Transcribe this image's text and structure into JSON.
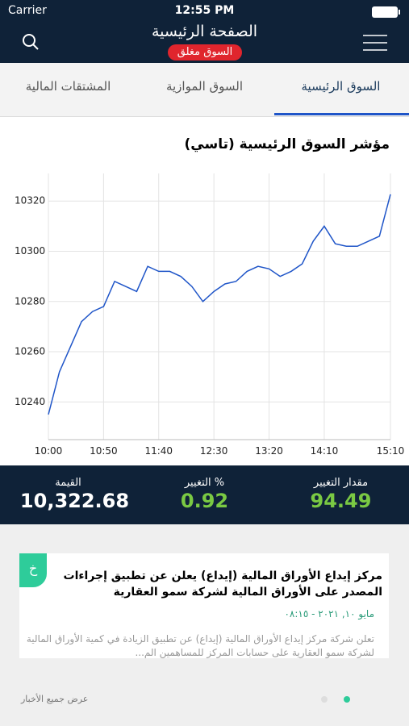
{
  "status_bar": {
    "carrier": "Carrier",
    "time": "12:55 PM"
  },
  "header": {
    "title": "الصفحة الرئيسية",
    "badge": "السوق مغلق"
  },
  "tabs": [
    "السوق الرئيسية",
    "السوق الموازية",
    "المشتقات المالية"
  ],
  "chart_data": {
    "type": "line",
    "title": "مؤشر السوق الرئيسية (تاسي)",
    "x": [
      "10:00",
      "10:10",
      "10:20",
      "10:30",
      "10:40",
      "10:50",
      "11:00",
      "11:10",
      "11:20",
      "11:30",
      "11:40",
      "11:50",
      "12:00",
      "12:10",
      "12:20",
      "12:30",
      "12:40",
      "12:50",
      "13:00",
      "13:10",
      "13:20",
      "13:30",
      "13:40",
      "13:50",
      "14:00",
      "14:10",
      "14:20",
      "14:30",
      "14:40",
      "14:50",
      "15:00",
      "15:10"
    ],
    "series": [
      {
        "color": "#1f55c8",
        "values": [
          10235,
          10252,
          10262,
          10272,
          10276,
          10278,
          10288,
          10286,
          10284,
          10294,
          10292,
          10292,
          10290,
          10286,
          10280,
          10284,
          10287,
          10288,
          10292,
          10294,
          10293,
          10290,
          10292,
          10295,
          10304,
          10310,
          10303,
          10302,
          10302,
          10304,
          10306,
          10322.68
        ]
      }
    ],
    "xticks": [
      "10:00",
      "10:50",
      "11:40",
      "12:30",
      "13:20",
      "14:10",
      "15:10"
    ],
    "ylim": [
      10225,
      10331
    ],
    "yticks": [
      10240,
      10260,
      10280,
      10300,
      10320
    ],
    "grid": true
  },
  "stats": [
    {
      "label": "القيمة",
      "value": "10,322.68"
    },
    {
      "label": "% التغيير",
      "value": "0.92"
    },
    {
      "label": "مقدار التغيير",
      "value": "94.49"
    }
  ],
  "news": {
    "badge": "خ",
    "title": "مركز إيداع الأوراق المالية (إيداع) يعلن عن تطبيق إجراءات المصدر على الأوراق المالية لشركة سمو العقارية",
    "date": "مايو ١٠, ٢٠٢١ - ٠٨:١٥",
    "summary": "تعلن شركة مركز إيداع الأوراق المالية (إيداع) عن تطبيق الزيادة في كمية الأوراق المالية لشركة سمو العقارية على حسابات المركز للمساهمين الم..."
  },
  "footer": {
    "link": "عرض جميع الأخبار"
  }
}
